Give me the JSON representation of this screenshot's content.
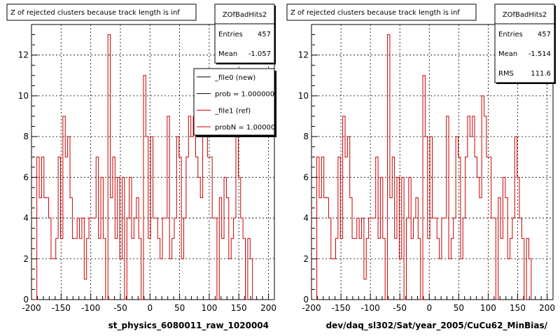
{
  "footer_text": "",
  "chart_data": [
    {
      "type": "histogram",
      "title": "Z of rejected clusters  because track length is inf",
      "xlabel": "st_physics_6080011_raw_1020004",
      "xlim": [
        -200,
        210
      ],
      "ylim": [
        0,
        13.5
      ],
      "x_ticks": [
        -200,
        -150,
        -100,
        -50,
        0,
        50,
        100,
        150,
        200
      ],
      "y_ticks": [
        0,
        2,
        4,
        6,
        8,
        10,
        12
      ],
      "grid": true,
      "line_color": "#cc0000",
      "bin_start": -195,
      "bin_width": 4,
      "values": [
        0,
        7,
        5,
        7,
        5,
        5,
        4,
        2,
        2,
        3,
        7,
        3,
        9,
        7,
        8,
        5,
        3,
        3,
        4,
        3,
        4,
        1,
        3,
        4,
        4,
        4,
        7,
        3,
        6,
        3,
        0,
        13,
        5,
        7,
        3,
        6,
        2,
        6,
        0,
        4,
        6,
        3,
        4,
        5,
        3,
        0,
        11,
        8,
        3,
        8,
        4,
        4,
        3,
        2,
        4,
        4,
        9,
        2,
        3,
        4,
        8,
        7,
        2,
        4,
        7,
        9,
        8,
        9,
        7,
        6,
        5,
        10,
        9,
        7,
        7,
        4,
        4,
        0,
        5,
        3,
        6,
        5,
        2,
        3,
        4,
        8,
        6,
        4,
        3,
        0,
        3,
        2
      ],
      "stats": {
        "title": "ZOfBadHits2",
        "rows": [
          {
            "label": "Entries",
            "value": "457"
          },
          {
            "label": "Mean",
            "value": "-1.057"
          }
        ]
      },
      "legend": {
        "position": "top-right",
        "entries": [
          {
            "label": "_file0 (new)",
            "color": "#000000"
          },
          {
            "label": "prob = 1.000000",
            "color": "#000000"
          },
          {
            "label": "_file1 (ref)",
            "color": "#cc0000"
          },
          {
            "label": "probN = 1.000000",
            "color": "#cc0000"
          }
        ]
      }
    },
    {
      "type": "histogram",
      "title": "Z of rejected clusters  because track length is inf",
      "xlabel": "dev/daq_sl302/Sat/year_2005/CuCu62_MinBias/",
      "xlim": [
        -200,
        210
      ],
      "ylim": [
        0,
        13.5
      ],
      "x_ticks": [
        -200,
        -150,
        -100,
        -50,
        0,
        50,
        100,
        150,
        200
      ],
      "y_ticks": [
        0,
        2,
        4,
        6,
        8,
        10,
        12
      ],
      "grid": true,
      "line_color": "#cc0000",
      "bin_start": -195,
      "bin_width": 4,
      "values": [
        0,
        7,
        5,
        7,
        5,
        5,
        4,
        2,
        2,
        3,
        7,
        3,
        9,
        7,
        8,
        5,
        3,
        3,
        4,
        3,
        4,
        1,
        3,
        4,
        4,
        4,
        7,
        3,
        6,
        3,
        0,
        13,
        5,
        7,
        3,
        6,
        2,
        6,
        0,
        4,
        6,
        3,
        4,
        5,
        3,
        0,
        11,
        8,
        3,
        8,
        4,
        4,
        3,
        2,
        4,
        4,
        9,
        2,
        3,
        4,
        8,
        7,
        2,
        4,
        7,
        9,
        8,
        9,
        7,
        6,
        5,
        10,
        9,
        7,
        7,
        4,
        4,
        0,
        5,
        3,
        6,
        5,
        2,
        3,
        4,
        8,
        6,
        4,
        3,
        0,
        3,
        2
      ],
      "stats": {
        "title": "ZOfBadHits2",
        "rows": [
          {
            "label": "Entries",
            "value": "457"
          },
          {
            "label": "Mean",
            "value": "-1.514"
          },
          {
            "label": "RMS",
            "value": "111.6"
          }
        ]
      }
    }
  ]
}
